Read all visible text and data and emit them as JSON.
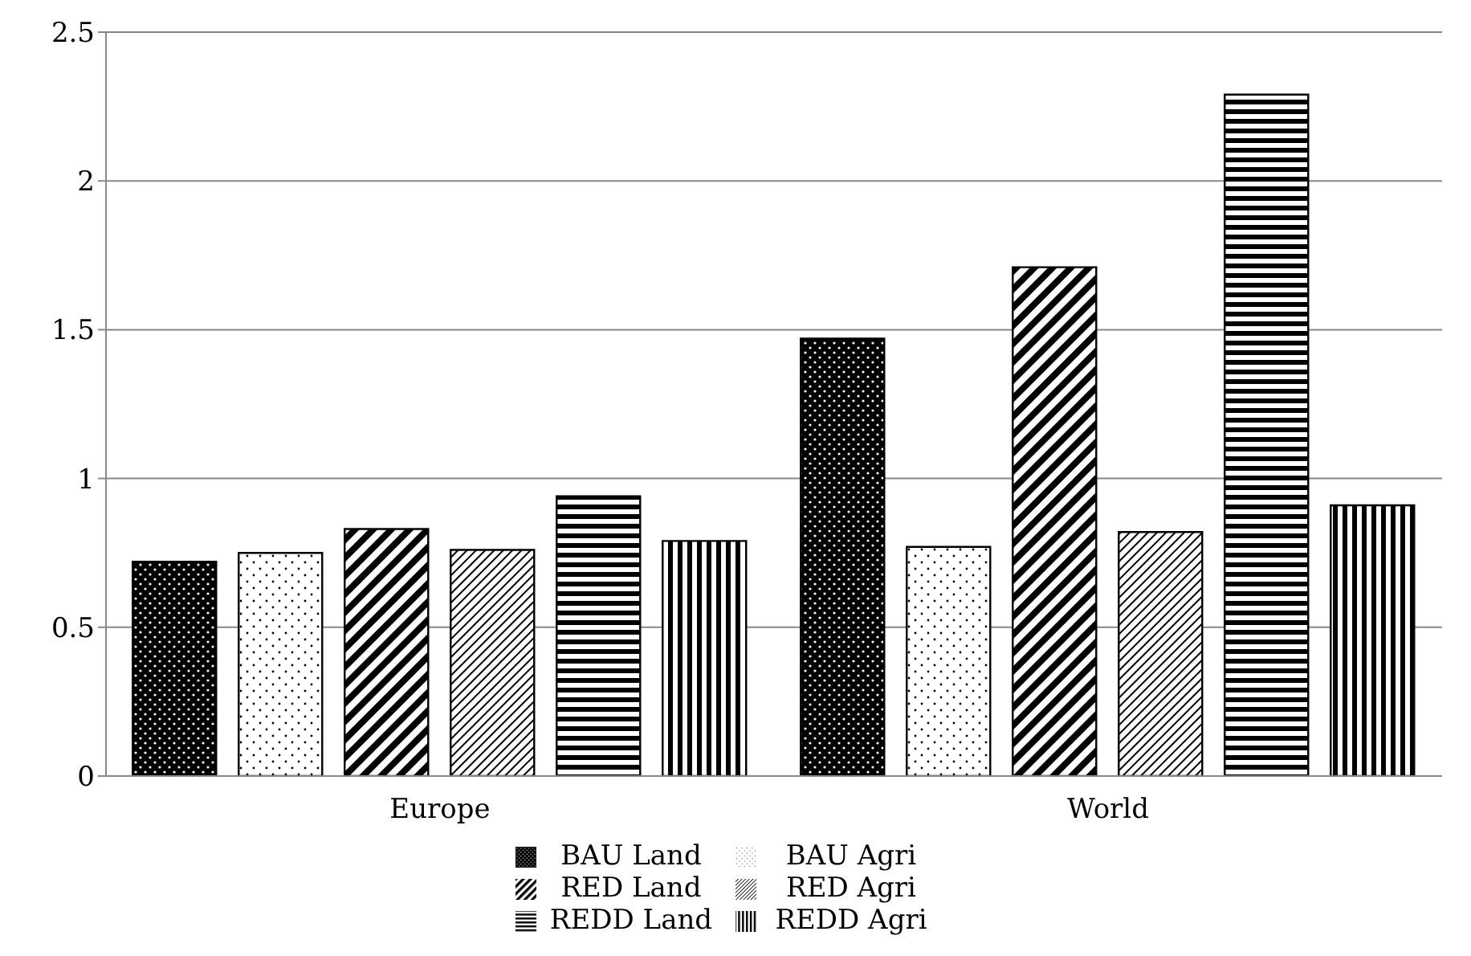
{
  "chart_data": {
    "type": "bar",
    "categories": [
      "Europe",
      "World"
    ],
    "series": [
      {
        "name": "BAU Land",
        "color": "#000000",
        "values": [
          0.72,
          1.47
        ]
      },
      {
        "name": "BAU Agri",
        "color": "#000000",
        "values": [
          0.75,
          0.77
        ]
      },
      {
        "name": "RED Land",
        "color": "#000000",
        "values": [
          0.83,
          1.71
        ]
      },
      {
        "name": "RED Agri",
        "color": "#000000",
        "values": [
          0.76,
          0.82
        ]
      },
      {
        "name": "REDD Land",
        "color": "#000000",
        "values": [
          0.94,
          2.29
        ]
      },
      {
        "name": "REDD Agri",
        "color": "#000000",
        "values": [
          0.79,
          0.91
        ]
      }
    ],
    "ylim": [
      0,
      2.5
    ],
    "yticks": [
      0,
      0.5,
      1,
      1.5,
      2,
      2.5
    ],
    "grid": "y",
    "legend": "bottom"
  }
}
